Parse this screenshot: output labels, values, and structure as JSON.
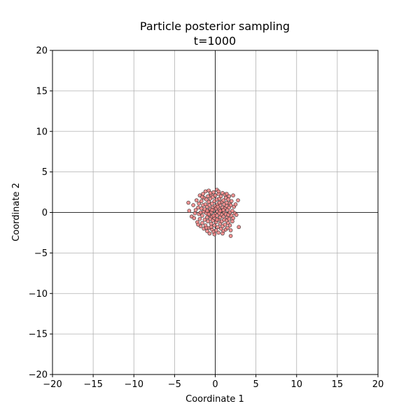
{
  "chart_data": {
    "type": "scatter",
    "title": "Particle posterior sampling",
    "subtitle": "t=1000",
    "xlabel": "Coordinate 1",
    "ylabel": "Coordinate 2",
    "xlim": [
      -20,
      20
    ],
    "ylim": [
      -20,
      20
    ],
    "xticks": [
      -20,
      -15,
      -10,
      -5,
      0,
      5,
      10,
      15,
      20
    ],
    "yticks": [
      -20,
      -15,
      -10,
      -5,
      0,
      5,
      10,
      15,
      20
    ],
    "xtick_labels": [
      "−20",
      "−15",
      "−10",
      "−5",
      "0",
      "5",
      "10",
      "15",
      "20"
    ],
    "ytick_labels": [
      "−20",
      "−15",
      "−10",
      "−5",
      "0",
      "5",
      "10",
      "15",
      "20"
    ],
    "grid": true,
    "zero_lines": true,
    "marker_color": "#f08080",
    "marker_edge_color": "#333333",
    "grid_color": "#b0b0b0",
    "points": [
      [
        -3.3,
        1.2
      ],
      [
        -3.2,
        0.2
      ],
      [
        -2.9,
        -0.5
      ],
      [
        -2.7,
        0.9
      ],
      [
        -2.6,
        -0.7
      ],
      [
        -2.4,
        0.3
      ],
      [
        -2.3,
        1.5
      ],
      [
        -2.2,
        -1.2
      ],
      [
        -2.1,
        0.6
      ],
      [
        -2.0,
        -0.2
      ],
      [
        -2.0,
        1.1
      ],
      [
        -1.9,
        -0.8
      ],
      [
        -1.9,
        2.1
      ],
      [
        -1.8,
        0.0
      ],
      [
        -1.8,
        -1.7
      ],
      [
        -1.7,
        1.4
      ],
      [
        -1.7,
        0.5
      ],
      [
        -1.6,
        -0.4
      ],
      [
        -1.6,
        -1.3
      ],
      [
        -1.5,
        2.3
      ],
      [
        -1.5,
        0.9
      ],
      [
        -1.4,
        -2.0
      ],
      [
        -1.4,
        0.1
      ],
      [
        -1.4,
        1.8
      ],
      [
        -1.3,
        -0.9
      ],
      [
        -1.3,
        0.4
      ],
      [
        -1.2,
        2.6
      ],
      [
        -1.2,
        -1.6
      ],
      [
        -1.2,
        1.0
      ],
      [
        -1.1,
        -0.1
      ],
      [
        -1.1,
        1.6
      ],
      [
        -1.0,
        -2.3
      ],
      [
        -1.0,
        0.7
      ],
      [
        -1.0,
        -0.6
      ],
      [
        -0.9,
        2.0
      ],
      [
        -0.9,
        -1.1
      ],
      [
        -0.9,
        0.2
      ],
      [
        -0.8,
        1.3
      ],
      [
        -0.8,
        -1.9
      ],
      [
        -0.8,
        2.7
      ],
      [
        -0.7,
        -0.3
      ],
      [
        -0.7,
        0.9
      ],
      [
        -0.7,
        -2.6
      ],
      [
        -0.6,
        1.7
      ],
      [
        -0.6,
        -0.8
      ],
      [
        -0.6,
        0.4
      ],
      [
        -0.5,
        -1.4
      ],
      [
        -0.5,
        2.2
      ],
      [
        -0.5,
        0.0
      ],
      [
        -0.4,
        1.1
      ],
      [
        -0.4,
        -2.1
      ],
      [
        -0.4,
        -0.5
      ],
      [
        -0.3,
        0.6
      ],
      [
        -0.3,
        1.9
      ],
      [
        -0.3,
        -1.0
      ],
      [
        -0.2,
        -2.4
      ],
      [
        -0.2,
        0.3
      ],
      [
        -0.2,
        2.5
      ],
      [
        -0.1,
        -0.7
      ],
      [
        -0.1,
        1.4
      ],
      [
        -0.1,
        -1.6
      ],
      [
        0.0,
        0.8
      ],
      [
        0.0,
        -0.2
      ],
      [
        0.0,
        2.1
      ],
      [
        0.1,
        -1.2
      ],
      [
        0.1,
        0.5
      ],
      [
        0.1,
        -2.2
      ],
      [
        0.2,
        1.6
      ],
      [
        0.2,
        -0.4
      ],
      [
        0.2,
        2.8
      ],
      [
        0.3,
        0.1
      ],
      [
        0.3,
        -1.8
      ],
      [
        0.3,
        1.0
      ],
      [
        0.4,
        -0.9
      ],
      [
        0.4,
        2.3
      ],
      [
        0.4,
        -2.5
      ],
      [
        0.5,
        0.4
      ],
      [
        0.5,
        -0.1
      ],
      [
        0.5,
        1.7
      ],
      [
        0.6,
        -1.4
      ],
      [
        0.6,
        0.9
      ],
      [
        0.6,
        -0.6
      ],
      [
        0.7,
        2.0
      ],
      [
        0.7,
        -2.0
      ],
      [
        0.7,
        0.2
      ],
      [
        0.8,
        1.3
      ],
      [
        0.8,
        -1.1
      ],
      [
        0.8,
        -0.3
      ],
      [
        0.9,
        2.4
      ],
      [
        0.9,
        0.6
      ],
      [
        0.9,
        -1.7
      ],
      [
        1.0,
        -0.5
      ],
      [
        1.0,
        1.5
      ],
      [
        1.0,
        -2.3
      ],
      [
        1.1,
        0.0
      ],
      [
        1.1,
        1.0
      ],
      [
        1.1,
        -0.9
      ],
      [
        1.2,
        2.2
      ],
      [
        1.2,
        -1.5
      ],
      [
        1.2,
        0.5
      ],
      [
        1.3,
        -0.2
      ],
      [
        1.3,
        1.8
      ],
      [
        1.3,
        -2.1
      ],
      [
        1.4,
        0.8
      ],
      [
        1.4,
        -1.0
      ],
      [
        1.4,
        1.2
      ],
      [
        1.5,
        -0.6
      ],
      [
        1.5,
        0.3
      ],
      [
        1.5,
        -1.9
      ],
      [
        1.6,
        1.6
      ],
      [
        1.6,
        -0.3
      ],
      [
        1.6,
        -1.3
      ],
      [
        1.7,
        0.6
      ],
      [
        1.7,
        2.0
      ],
      [
        1.7,
        -0.8
      ],
      [
        1.8,
        -1.6
      ],
      [
        1.8,
        1.1
      ],
      [
        1.8,
        0.0
      ],
      [
        1.9,
        -2.9
      ],
      [
        1.9,
        0.9
      ],
      [
        2.0,
        -0.4
      ],
      [
        2.0,
        1.4
      ],
      [
        2.1,
        -1.1
      ],
      [
        2.1,
        0.2
      ],
      [
        2.2,
        2.1
      ],
      [
        2.2,
        -0.7
      ],
      [
        2.3,
        0.7
      ],
      [
        2.4,
        -0.1
      ],
      [
        2.5,
        1.0
      ],
      [
        2.6,
        -0.3
      ],
      [
        2.8,
        1.5
      ],
      [
        2.9,
        -1.8
      ],
      [
        -2.5,
        -0.1
      ],
      [
        -2.1,
        -1.5
      ],
      [
        -1.6,
        1.9
      ],
      [
        -1.1,
        -1.9
      ],
      [
        -0.6,
        2.4
      ],
      [
        -0.1,
        -2.7
      ],
      [
        0.4,
        2.6
      ],
      [
        0.9,
        -2.6
      ],
      [
        1.4,
        2.3
      ],
      [
        1.9,
        -2.2
      ],
      [
        -0.8,
        -0.2
      ],
      [
        -0.4,
        0.3
      ],
      [
        0.2,
        -0.9
      ],
      [
        0.6,
        0.2
      ],
      [
        -0.2,
        -0.4
      ],
      [
        0.3,
        0.7
      ],
      [
        -1.0,
        0.2
      ],
      [
        1.0,
        0.3
      ],
      [
        -0.5,
        -1.8
      ],
      [
        0.5,
        1.2
      ]
    ]
  }
}
